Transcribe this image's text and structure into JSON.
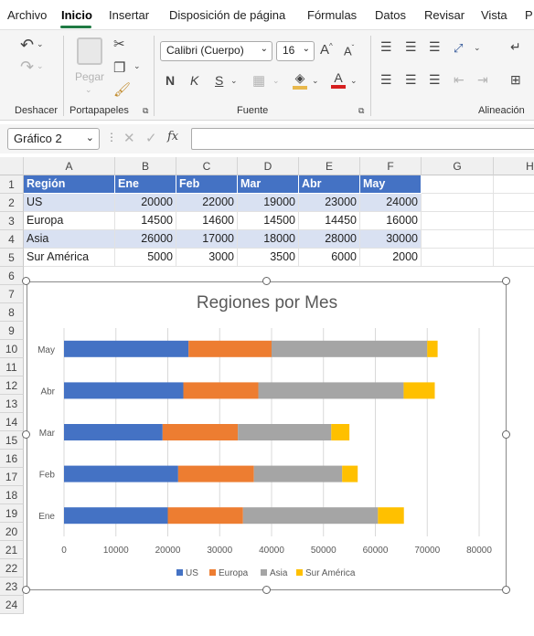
{
  "menu": {
    "items": [
      "Archivo",
      "Inicio",
      "Insertar",
      "Disposición de página",
      "Fórmulas",
      "Datos",
      "Revisar",
      "Vista",
      "P"
    ],
    "active": "Inicio"
  },
  "ribbon": {
    "undo_group": "Deshacer",
    "clipboard_group": "Portapapeles",
    "paste_label": "Pegar",
    "font_group": "Fuente",
    "align_group": "Alineación",
    "font_name": "Calibri (Cuerpo)",
    "font_size": "16",
    "bold": "N",
    "italic": "K",
    "underline": "S",
    "grow_font": "A^",
    "shrink_font": "Aˇ"
  },
  "formula_bar": {
    "name_box": "Gráfico 2",
    "fx": "fx",
    "value": ""
  },
  "columns": [
    "A",
    "B",
    "C",
    "D",
    "E",
    "F",
    "G",
    "H"
  ],
  "rows": [
    "1",
    "2",
    "3",
    "4",
    "5",
    "6",
    "7",
    "8",
    "9",
    "10",
    "11",
    "12",
    "13",
    "14",
    "15",
    "16",
    "17",
    "18",
    "19",
    "20",
    "21",
    "22",
    "23",
    "24"
  ],
  "table": {
    "header": [
      "Región",
      "Ene",
      "Feb",
      "Mar",
      "Abr",
      "May"
    ],
    "body": [
      [
        "US",
        "20000",
        "22000",
        "19000",
        "23000",
        "24000"
      ],
      [
        "Europa",
        "14500",
        "14600",
        "14500",
        "14450",
        "16000"
      ],
      [
        "Asia",
        "26000",
        "17000",
        "18000",
        "28000",
        "30000"
      ],
      [
        "Sur América",
        "5000",
        "3000",
        "3500",
        "6000",
        "2000"
      ]
    ]
  },
  "chart_data": {
    "type": "bar",
    "orientation": "horizontal",
    "stacked": true,
    "title": "Regiones por Mes",
    "categories": [
      "Ene",
      "Feb",
      "Mar",
      "Abr",
      "May"
    ],
    "series": [
      {
        "name": "US",
        "values": [
          20000,
          22000,
          19000,
          23000,
          24000
        ],
        "color": "#4472c4"
      },
      {
        "name": "Europa",
        "values": [
          14500,
          14600,
          14500,
          14450,
          16000
        ],
        "color": "#ed7d31"
      },
      {
        "name": "Asia",
        "values": [
          26000,
          17000,
          18000,
          28000,
          30000
        ],
        "color": "#a5a5a5"
      },
      {
        "name": "Sur América",
        "values": [
          5000,
          3000,
          3500,
          6000,
          2000
        ],
        "color": "#ffc000"
      }
    ],
    "xlim": [
      0,
      80000
    ],
    "xticks": [
      "0",
      "10000",
      "20000",
      "30000",
      "40000",
      "50000",
      "60000",
      "70000",
      "80000"
    ],
    "grid": true,
    "legend_position": "bottom"
  }
}
